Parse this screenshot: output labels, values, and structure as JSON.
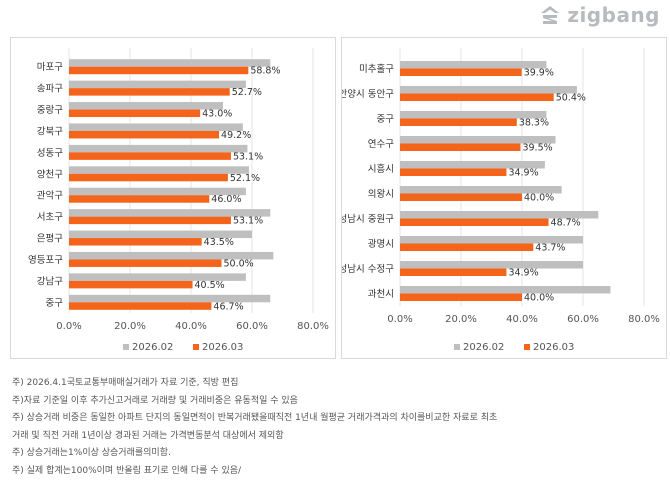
{
  "brand": {
    "name": "zigbang"
  },
  "legend": {
    "series1": "2026.02",
    "series2": "2026.03"
  },
  "colors": {
    "series1": "#bfbfbf",
    "series2": "#f4651b",
    "grid": "#e6e6e6",
    "text": "#333333"
  },
  "chart_data": [
    {
      "type": "bar",
      "orientation": "horizontal",
      "categories": [
        "마포구",
        "송파구",
        "중랑구",
        "강북구",
        "성동구",
        "양천구",
        "관악구",
        "서초구",
        "은평구",
        "영등포구",
        "강남구",
        "중구"
      ],
      "series": [
        {
          "name": "2026.02",
          "values": [
            66.0,
            58.0,
            50.5,
            57.0,
            58.5,
            59.0,
            58.0,
            66.0,
            60.0,
            67.0,
            58.0,
            66.0
          ]
        },
        {
          "name": "2026.03",
          "values": [
            58.8,
            52.7,
            43.0,
            49.2,
            53.1,
            52.1,
            46.0,
            53.1,
            43.5,
            50.0,
            40.5,
            46.7
          ]
        }
      ],
      "data_labels": [
        "58.8%",
        "52.7%",
        "43.0%",
        "49.2%",
        "53.1%",
        "52.1%",
        "46.0%",
        "53.1%",
        "43.5%",
        "50.0%",
        "40.5%",
        "46.7%"
      ],
      "xlim": [
        0,
        80
      ],
      "xticks": [
        "0.0%",
        "20.0%",
        "40.0%",
        "60.0%",
        "80.0%"
      ],
      "legend_position": "bottom"
    },
    {
      "type": "bar",
      "orientation": "horizontal",
      "categories": [
        "미추홀구",
        "안양시 동안구",
        "중구",
        "연수구",
        "시흥시",
        "의왕시",
        "성남시 중원구",
        "광명시",
        "성남시 수정구",
        "과천시"
      ],
      "series": [
        {
          "name": "2026.02",
          "values": [
            48.0,
            58.0,
            48.0,
            51.0,
            47.5,
            53.0,
            65.0,
            60.0,
            60.0,
            69.0
          ]
        },
        {
          "name": "2026.03",
          "values": [
            39.9,
            50.4,
            38.3,
            39.5,
            34.9,
            40.0,
            48.7,
            43.7,
            34.9,
            40.0
          ]
        }
      ],
      "data_labels": [
        "39.9%",
        "50.4%",
        "38.3%",
        "39.5%",
        "34.9%",
        "40.0%",
        "48.7%",
        "43.7%",
        "34.9%",
        "40.0%"
      ],
      "xlim": [
        0,
        80
      ],
      "xticks": [
        "0.0%",
        "20.0%",
        "40.0%",
        "60.0%",
        "80.0%"
      ],
      "legend_position": "bottom"
    }
  ],
  "footnotes": [
    "주) 2026.4.1국토교통부매매실거래가 자료 기준, 직방 편집",
    "주)자료 기준일 이후 추가신고거래로 거래량 및 거래비중은 유동적일 수 있음",
    "주) 상승거래 비중은 동일한 아파트 단지의 동일면적이 반복거래됐을때직전 1년내 월평균 거래가격과의 차이를비교한 자료로 최초",
    "거래 및 직전 거래 1년이상 경과된 거래는 가격변동분석 대상에서 제외함",
    "주) 상승거래는1%이상 상승거래를의미함.",
    "주) 실제 합계는100%이며 반올림 표기로 인해 다를 수 있음/"
  ]
}
